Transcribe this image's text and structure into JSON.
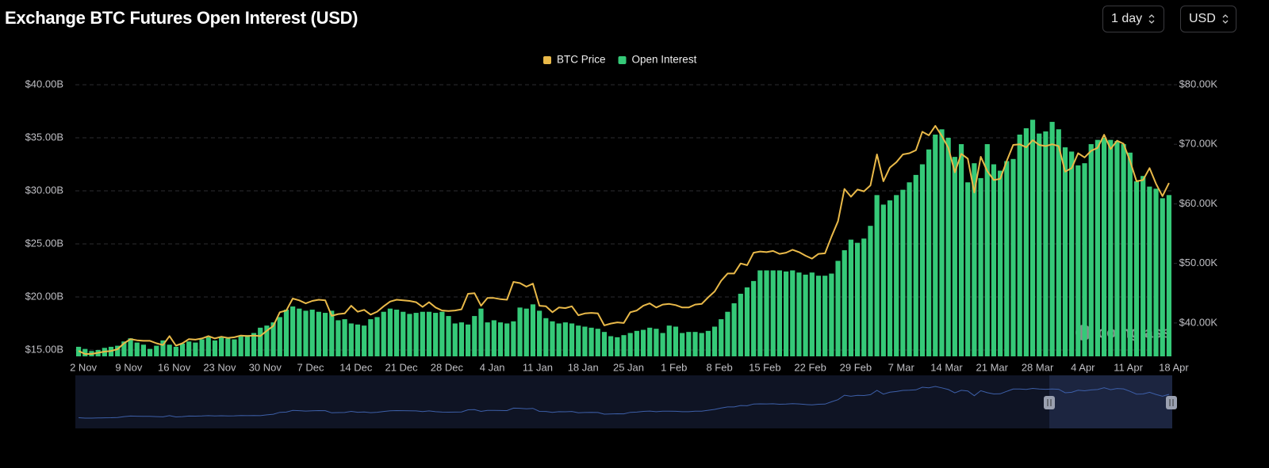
{
  "title": "Exchange BTC Futures Open Interest (USD)",
  "controls": [
    "1 day",
    "USD"
  ],
  "watermark": "coinglass",
  "chart_data": {
    "type": "bar",
    "categories": [
      "2 Nov",
      null,
      null,
      null,
      null,
      null,
      null,
      "9 Nov",
      null,
      null,
      null,
      null,
      null,
      null,
      "16 Nov",
      null,
      null,
      null,
      null,
      null,
      null,
      "23 Nov",
      null,
      null,
      null,
      null,
      null,
      null,
      "30 Nov",
      null,
      null,
      null,
      null,
      null,
      null,
      "7 Dec",
      null,
      null,
      null,
      null,
      null,
      null,
      "14 Dec",
      null,
      null,
      null,
      null,
      null,
      null,
      "21 Dec",
      null,
      null,
      null,
      null,
      null,
      null,
      "28 Dec",
      null,
      null,
      null,
      null,
      null,
      null,
      "4 Jan",
      null,
      null,
      null,
      null,
      null,
      null,
      "11 Jan",
      null,
      null,
      null,
      null,
      null,
      null,
      "18 Jan",
      null,
      null,
      null,
      null,
      null,
      null,
      "25 Jan",
      null,
      null,
      null,
      null,
      null,
      null,
      "1 Feb",
      null,
      null,
      null,
      null,
      null,
      null,
      "8 Feb",
      null,
      null,
      null,
      null,
      null,
      null,
      "15 Feb",
      null,
      null,
      null,
      null,
      null,
      null,
      "22 Feb",
      null,
      null,
      null,
      null,
      null,
      null,
      "29 Feb",
      null,
      null,
      null,
      null,
      null,
      null,
      "7 Mar",
      null,
      null,
      null,
      null,
      null,
      null,
      "14 Mar",
      null,
      null,
      null,
      null,
      null,
      null,
      "21 Mar",
      null,
      null,
      null,
      null,
      null,
      null,
      "28 Mar",
      null,
      null,
      null,
      null,
      null,
      null,
      "4 Apr",
      null,
      null,
      null,
      null,
      null,
      null,
      "11 Apr",
      null,
      null,
      null,
      null,
      null,
      null,
      "18 Apr"
    ],
    "series": [
      {
        "name": "BTC Price",
        "type": "line",
        "axis": "y2",
        "color": "#e9b949",
        "values": [
          35.3,
          34.8,
          34.8,
          35.0,
          35.2,
          35.3,
          35.6,
          36.6,
          37.3,
          37.1,
          37.0,
          37.0,
          36.6,
          36.3,
          37.8,
          36.2,
          36.6,
          37.3,
          37.2,
          37.4,
          37.8,
          37.4,
          37.7,
          37.5,
          37.6,
          37.9,
          37.8,
          37.9,
          37.8,
          38.7,
          39.5,
          41.8,
          42.1,
          44.1,
          43.8,
          43.3,
          43.7,
          43.9,
          43.8,
          41.2,
          41.5,
          41.6,
          42.9,
          41.9,
          42.2,
          41.4,
          41.9,
          42.8,
          43.6,
          43.9,
          43.8,
          43.7,
          43.5,
          42.7,
          43.5,
          42.6,
          42.1,
          42.0,
          42.1,
          42.3,
          44.9,
          45.0,
          42.9,
          44.2,
          44.2,
          44.0,
          43.9,
          46.9,
          46.7,
          46.1,
          46.6,
          42.9,
          42.8,
          41.8,
          42.6,
          42.5,
          42.8,
          41.3,
          41.6,
          41.7,
          41.6,
          39.6,
          39.9,
          40.1,
          40.0,
          41.8,
          42.1,
          42.9,
          43.3,
          42.6,
          43.1,
          43.2,
          43.0,
          42.6,
          42.6,
          43.1,
          43.2,
          44.3,
          45.3,
          47.1,
          48.3,
          48.3,
          50.0,
          49.7,
          51.8,
          52.0,
          51.9,
          52.1,
          51.6,
          51.8,
          52.3,
          51.9,
          51.3,
          50.8,
          51.6,
          51.7,
          54.5,
          57.1,
          62.5,
          61.2,
          62.4,
          62.1,
          63.1,
          68.3,
          63.8,
          66.1,
          67.0,
          68.3,
          68.5,
          69.0,
          72.1,
          71.5,
          73.1,
          71.4,
          69.4,
          65.3,
          68.4,
          67.6,
          61.9,
          67.9,
          65.5,
          64.0,
          64.2,
          67.2,
          69.9,
          70.0,
          69.5,
          70.7,
          69.9,
          69.7,
          70.0,
          69.7,
          65.4,
          66.0,
          68.5,
          67.8,
          68.9,
          69.4,
          71.6,
          69.2,
          70.6,
          70.1,
          67.2,
          63.8,
          64.0,
          66.0,
          63.4,
          61.3,
          63.5
        ]
      },
      {
        "name": "Open Interest",
        "type": "bar",
        "color": "#35c978",
        "values": [
          15.3,
          15.1,
          14.9,
          15.0,
          15.2,
          15.3,
          15.4,
          15.8,
          16.1,
          15.7,
          15.5,
          15.1,
          15.4,
          15.9,
          15.5,
          15.3,
          15.6,
          15.8,
          15.7,
          16.0,
          16.2,
          15.9,
          16.2,
          16.1,
          16.0,
          16.3,
          16.4,
          16.6,
          17.1,
          17.3,
          17.6,
          18.1,
          18.8,
          19.1,
          18.9,
          18.7,
          18.8,
          18.6,
          18.5,
          18.7,
          17.8,
          17.9,
          17.5,
          17.4,
          17.3,
          17.9,
          18.1,
          18.6,
          18.9,
          18.8,
          18.6,
          18.4,
          18.5,
          18.6,
          18.6,
          18.5,
          18.6,
          18.2,
          17.5,
          17.6,
          17.4,
          18.2,
          18.9,
          17.6,
          17.8,
          17.6,
          17.5,
          17.7,
          19.0,
          18.9,
          19.3,
          18.7,
          18.0,
          17.7,
          17.5,
          17.6,
          17.5,
          17.3,
          17.2,
          17.1,
          17.0,
          16.7,
          16.3,
          16.2,
          16.4,
          16.6,
          16.8,
          16.9,
          17.1,
          17.0,
          16.6,
          17.3,
          17.2,
          16.6,
          16.7,
          16.7,
          16.6,
          16.8,
          17.2,
          17.9,
          18.6,
          19.4,
          20.3,
          20.9,
          21.5,
          22.5,
          22.5,
          22.5,
          22.5,
          22.4,
          22.5,
          22.3,
          22.1,
          22.3,
          22.0,
          22.0,
          22.2,
          23.4,
          24.4,
          25.4,
          25.1,
          25.5,
          26.7,
          29.6,
          28.7,
          29.1,
          29.6,
          30.1,
          30.8,
          31.5,
          32.5,
          33.9,
          35.3,
          35.8,
          35.0,
          33.2,
          34.4,
          30.8,
          32.6,
          31.2,
          34.4,
          32.5,
          31.9,
          32.8,
          33.0,
          35.3,
          35.9,
          36.7,
          35.4,
          35.6,
          36.5,
          35.8,
          34.1,
          33.7,
          32.4,
          32.6,
          34.4,
          34.8,
          35.0,
          34.8,
          34.7,
          34.4,
          33.6,
          30.9,
          31.4,
          30.4,
          30.2,
          29.3,
          29.6
        ]
      }
    ],
    "ylim": [
      14.4,
      40
    ],
    "yticks": [
      {
        "value": 15,
        "label": "$15.00B"
      },
      {
        "value": 20,
        "label": "$20.00B"
      },
      {
        "value": 25,
        "label": "$25.00B"
      },
      {
        "value": 30,
        "label": "$30.00B"
      },
      {
        "value": 35,
        "label": "$35.00B"
      },
      {
        "value": 40,
        "label": "$40.00B"
      }
    ],
    "y2lim": [
      34.4,
      80
    ],
    "y2ticks": [
      {
        "value": 40,
        "label": "$40.00K"
      },
      {
        "value": 50,
        "label": "$50.00K"
      },
      {
        "value": 60,
        "label": "$60.00K"
      },
      {
        "value": 70,
        "label": "$70.00K"
      },
      {
        "value": 80,
        "label": "$80.00K"
      }
    ],
    "grid": true,
    "legend": "top"
  }
}
